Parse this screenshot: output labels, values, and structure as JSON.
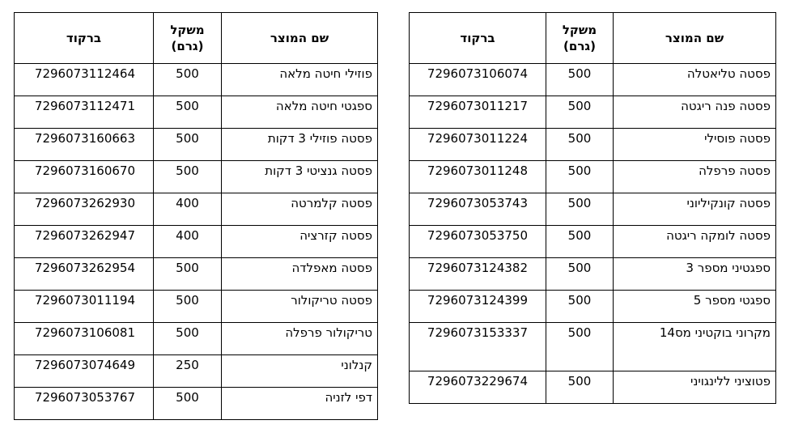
{
  "headers": {
    "name": "שם המוצר",
    "weight": "משקל (גרם)",
    "barcode": "ברקוד"
  },
  "left_table": [
    {
      "name": "פוזילי חיטה מלאה",
      "weight": "500",
      "barcode": "7296073112464"
    },
    {
      "name": "ספגטי חיטה מלאה",
      "weight": "500",
      "barcode": "7296073112471"
    },
    {
      "name": "פסטה פוזילי 3 דקות",
      "weight": "500",
      "barcode": "7296073160663"
    },
    {
      "name": "פסטה גנציטי 3 דקות",
      "weight": "500",
      "barcode": "7296073160670"
    },
    {
      "name": "פסטה קלמרטה",
      "weight": "400",
      "barcode": "7296073262930"
    },
    {
      "name": "פסטה קזרציה",
      "weight": "400",
      "barcode": "7296073262947"
    },
    {
      "name": "פסטה מאפלדה",
      "weight": "500",
      "barcode": "7296073262954"
    },
    {
      "name": "פסטה טריקולור",
      "weight": "500",
      "barcode": "7296073011194"
    },
    {
      "name": "טריקולור פרפלה",
      "weight": "500",
      "barcode": "7296073106081"
    },
    {
      "name": "קנלוני",
      "weight": "250",
      "barcode": "7296073074649"
    },
    {
      "name": "דפי לזניה",
      "weight": "500",
      "barcode": "7296073053767"
    }
  ],
  "right_table": [
    {
      "name": "פסטה טליאטלה",
      "weight": "500",
      "barcode": "7296073106074"
    },
    {
      "name": "פסטה פנה ריגטה",
      "weight": "500",
      "barcode": "7296073011217"
    },
    {
      "name": "פסטה פוסילי",
      "weight": "500",
      "barcode": "7296073011224"
    },
    {
      "name": "פסטה פרפלה",
      "weight": "500",
      "barcode": "7296073011248"
    },
    {
      "name": "פסטה קונקיליוני",
      "weight": "500",
      "barcode": "7296073053743"
    },
    {
      "name": "פסטה לומקה ריגטה",
      "weight": "500",
      "barcode": "7296073053750"
    },
    {
      "name": "ספגטיני מספר 3",
      "weight": "500",
      "barcode": "7296073124382"
    },
    {
      "name": "ספגטי מספר 5",
      "weight": "500",
      "barcode": "7296073124399"
    },
    {
      "name": "מקרוני בוקטיני מס14",
      "weight": "500",
      "barcode": "7296073153337"
    },
    {
      "name": "פטוציני ללינגויני",
      "weight": "500",
      "barcode": "7296073229674"
    }
  ]
}
